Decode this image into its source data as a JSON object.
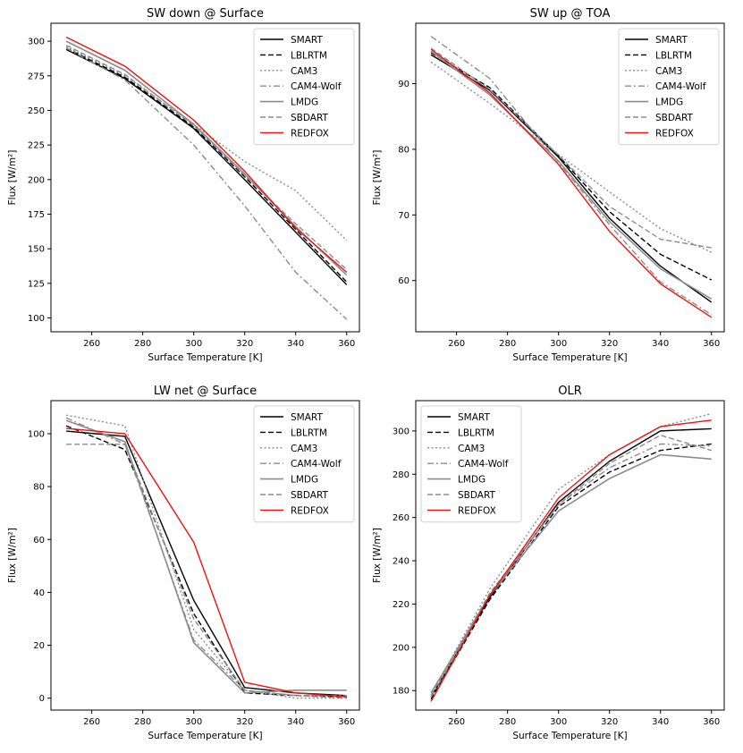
{
  "styles": {
    "SMART": {
      "color": "#000000",
      "dash": "",
      "width": 1.4
    },
    "LBLRTM": {
      "color": "#000000",
      "dash": "6,3",
      "width": 1.4
    },
    "CAM3": {
      "color": "#8c8c8c",
      "dash": "2,2.5",
      "width": 1.4
    },
    "CAM4-Wolf": {
      "color": "#8c8c8c",
      "dash": "7,3,2,3",
      "width": 1.4
    },
    "LMDG": {
      "color": "#8c8c8c",
      "dash": "",
      "width": 1.6
    },
    "SBDART": {
      "color": "#8c8c8c",
      "dash": "6,3",
      "width": 1.4
    },
    "REDFOX": {
      "color": "#ee1111",
      "dash": "",
      "width": 1.4
    }
  },
  "chart_data": [
    {
      "id": "sw-down-surface",
      "type": "line",
      "title": "SW down @ Surface",
      "xlabel": "Surface Temperature [K]",
      "ylabel": "Flux [W/m²]",
      "xlim": [
        244,
        365
      ],
      "ylim": [
        90,
        313
      ],
      "xticks": [
        260,
        280,
        300,
        320,
        340,
        360
      ],
      "yticks": [
        100,
        125,
        150,
        175,
        200,
        225,
        250,
        275,
        300
      ],
      "legend_position": "top-right",
      "x": [
        250,
        273,
        300,
        320,
        340,
        360
      ],
      "series": [
        {
          "name": "SMART",
          "values": [
            294,
            273,
            237,
            200,
            162,
            124
          ]
        },
        {
          "name": "LBLRTM",
          "values": [
            295,
            274,
            238,
            202,
            164,
            126
          ]
        },
        {
          "name": "CAM3",
          "values": [
            296,
            275,
            240,
            213,
            192,
            156
          ]
        },
        {
          "name": "CAM4-Wolf",
          "values": [
            295,
            272,
            225,
            181,
            133,
            99
          ]
        },
        {
          "name": "LMDG",
          "values": [
            300,
            279,
            240,
            204,
            166,
            131
          ]
        },
        {
          "name": "SBDART",
          "values": [
            297,
            276,
            239,
            203,
            168,
            135
          ]
        },
        {
          "name": "REDFOX",
          "values": [
            303,
            282,
            243,
            206,
            165,
            133
          ]
        }
      ]
    },
    {
      "id": "sw-up-toa",
      "type": "line",
      "title": "SW up @ TOA",
      "xlabel": "Surface Temperature [K]",
      "ylabel": "Flux [W/m²]",
      "xlim": [
        244,
        365
      ],
      "ylim": [
        52.2,
        99.2
      ],
      "xticks": [
        260,
        280,
        300,
        320,
        340,
        360
      ],
      "yticks": [
        60,
        70,
        80,
        90
      ],
      "legend_position": "top-right",
      "x": [
        250,
        273,
        300,
        320,
        340,
        360
      ],
      "series": [
        {
          "name": "SMART",
          "values": [
            94.4,
            89.0,
            78.8,
            69.5,
            62.2,
            56.7
          ]
        },
        {
          "name": "LBLRTM",
          "values": [
            94.7,
            89.4,
            79.0,
            70.5,
            64.0,
            60.1
          ]
        },
        {
          "name": "CAM3",
          "values": [
            93.3,
            87.0,
            79.2,
            73.5,
            67.9,
            64.3
          ]
        },
        {
          "name": "CAM4-Wolf",
          "values": [
            97.2,
            90.8,
            78.0,
            68.5,
            59.8,
            54.8
          ]
        },
        {
          "name": "LMDG",
          "values": [
            94.9,
            88.3,
            78.2,
            69.0,
            61.8,
            57.2
          ]
        },
        {
          "name": "SBDART",
          "values": [
            95.4,
            89.1,
            79.1,
            71.3,
            66.3,
            65.0
          ]
        },
        {
          "name": "REDFOX",
          "values": [
            95.2,
            88.6,
            77.7,
            67.5,
            59.5,
            54.4
          ]
        }
      ]
    },
    {
      "id": "lw-net-surface",
      "type": "line",
      "title": "LW net @ Surface",
      "xlabel": "Surface Temperature [K]",
      "ylabel": "Flux [W/m²]",
      "xlim": [
        244,
        365
      ],
      "ylim": [
        -4.5,
        112.5
      ],
      "xticks": [
        260,
        280,
        300,
        320,
        340,
        360
      ],
      "yticks": [
        0,
        20,
        40,
        60,
        80,
        100
      ],
      "legend_position": "top-right",
      "x": [
        250,
        273,
        300,
        320,
        340,
        360
      ],
      "series": [
        {
          "name": "SMART",
          "values": [
            101,
            99,
            37,
            4,
            2,
            1
          ]
        },
        {
          "name": "LBLRTM",
          "values": [
            103,
            94,
            32,
            2,
            1,
            0.5
          ]
        },
        {
          "name": "CAM3",
          "values": [
            107,
            103,
            26,
            3,
            0,
            0
          ]
        },
        {
          "name": "CAM4-Wolf",
          "values": [
            106,
            96,
            22,
            3,
            1,
            1
          ]
        },
        {
          "name": "LMDG",
          "values": [
            105,
            97,
            21,
            2,
            3,
            3
          ]
        },
        {
          "name": "SBDART",
          "values": [
            96,
            96,
            30,
            3,
            1,
            0
          ]
        },
        {
          "name": "REDFOX",
          "values": [
            102,
            100,
            59,
            6,
            2,
            0.5
          ]
        }
      ]
    },
    {
      "id": "olr",
      "type": "line",
      "title": "OLR",
      "xlabel": "Surface Temperature [K]",
      "ylabel": "Flux [W/m²]",
      "xlim": [
        244,
        365
      ],
      "ylim": [
        171,
        314
      ],
      "xticks": [
        260,
        280,
        300,
        320,
        340,
        360
      ],
      "yticks": [
        180,
        200,
        220,
        240,
        260,
        280,
        300
      ],
      "legend_position": "top-left",
      "x": [
        250,
        273,
        300,
        320,
        340,
        360
      ],
      "series": [
        {
          "name": "SMART",
          "values": [
            177,
            223,
            267,
            286,
            300,
            301
          ]
        },
        {
          "name": "LBLRTM",
          "values": [
            176,
            222,
            265,
            281,
            291,
            294
          ]
        },
        {
          "name": "CAM3",
          "values": [
            178,
            227,
            273,
            289,
            302,
            308
          ]
        },
        {
          "name": "CAM4-Wolf",
          "values": [
            177,
            224,
            266,
            283,
            294,
            293
          ]
        },
        {
          "name": "LMDG",
          "values": [
            179,
            224,
            263,
            278,
            289,
            287
          ]
        },
        {
          "name": "SBDART",
          "values": [
            178,
            225,
            266,
            285,
            298,
            291
          ]
        },
        {
          "name": "REDFOX",
          "values": [
            175,
            224,
            269,
            289,
            302,
            305
          ]
        }
      ]
    }
  ]
}
